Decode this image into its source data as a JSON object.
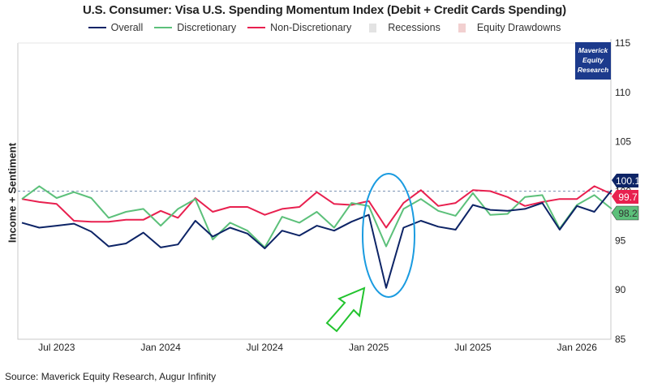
{
  "chart_data": {
    "type": "line",
    "title": "U.S. Consumer: Visa U.S. Spending Momentum Index (Debit + Credit Cards Spending)",
    "ylabel": "Income + Sentiment",
    "xlabel": "",
    "ylim": [
      85,
      115
    ],
    "yticks": [
      "85",
      "90",
      "95",
      "100",
      "105",
      "110",
      "115"
    ],
    "reference_line": 100,
    "x": [
      "May 2023",
      "Jun 2023",
      "Jul 2023",
      "Aug 2023",
      "Sep 2023",
      "Oct 2023",
      "Nov 2023",
      "Dec 2023",
      "Jan 2024",
      "Feb 2024",
      "Mar 2024",
      "Apr 2024",
      "May 2024",
      "Jun 2024",
      "Jul 2024",
      "Aug 2024",
      "Sep 2024",
      "Oct 2024",
      "Nov 2024",
      "Dec 2024",
      "Jan 2025",
      "Feb 2025",
      "Mar 2025",
      "Apr 2025",
      "May 2025",
      "Jun 2025",
      "Jul 2025",
      "Aug 2025",
      "Sep 2025",
      "Oct 2025",
      "Nov 2025",
      "Dec 2025",
      "Jan 2026",
      "Feb 2026",
      "Mar 2026"
    ],
    "xticks": [
      {
        "label": "Jul 2023",
        "index": 2
      },
      {
        "label": "Jan 2024",
        "index": 8
      },
      {
        "label": "Jul 2024",
        "index": 14
      },
      {
        "label": "Jan 2025",
        "index": 20
      },
      {
        "label": "Jul 2025",
        "index": 26
      },
      {
        "label": "Jan 2026",
        "index": 32
      }
    ],
    "series": [
      {
        "name": "Overall",
        "color": "#0d2466",
        "last_label": "100.1",
        "values": [
          96.8,
          96.3,
          96.5,
          96.7,
          95.9,
          94.4,
          94.7,
          95.8,
          94.3,
          94.6,
          97.0,
          95.4,
          96.3,
          95.7,
          94.2,
          96.0,
          95.5,
          96.5,
          96.0,
          96.9,
          97.6,
          90.2,
          96.3,
          97.0,
          96.4,
          96.1,
          98.6,
          98.1,
          98.0,
          98.2,
          98.8,
          96.1,
          98.5,
          97.9,
          100.1
        ]
      },
      {
        "name": "Discretionary",
        "color": "#5cc07a",
        "last_label": "98.2",
        "values": [
          99.2,
          100.5,
          99.3,
          99.9,
          99.3,
          97.3,
          97.9,
          98.2,
          96.5,
          98.2,
          99.2,
          95.1,
          96.8,
          96.0,
          94.3,
          97.4,
          96.8,
          97.9,
          96.3,
          98.8,
          98.5,
          94.4,
          98.2,
          99.2,
          98.0,
          97.5,
          99.8,
          97.6,
          97.7,
          99.4,
          99.6,
          96.2,
          98.6,
          99.6,
          98.2
        ]
      },
      {
        "name": "Non-Discretionary",
        "color": "#e8204f",
        "last_label": "99.7",
        "values": [
          99.2,
          98.9,
          98.7,
          97.0,
          96.9,
          96.9,
          97.1,
          97.1,
          98.0,
          97.3,
          99.3,
          97.9,
          98.4,
          98.4,
          97.6,
          98.2,
          98.4,
          99.9,
          98.7,
          98.6,
          99.0,
          96.3,
          98.8,
          100.1,
          98.5,
          98.8,
          100.1,
          100.0,
          99.4,
          98.5,
          98.9,
          99.2,
          99.2,
          100.5,
          99.7
        ]
      }
    ],
    "legend": [
      {
        "label": "Overall",
        "color": "#0d2466",
        "kind": "line"
      },
      {
        "label": "Discretionary",
        "color": "#5cc07a",
        "kind": "line"
      },
      {
        "label": "Non-Discretionary",
        "color": "#e8204f",
        "kind": "line"
      },
      {
        "label": "Recessions",
        "color": "#e3e3e3",
        "kind": "box"
      },
      {
        "label": "Equity Drawdowns",
        "color": "#f2d0d0",
        "kind": "box"
      }
    ],
    "legend_position": "top-center",
    "grid": false,
    "annotations": {
      "highlight": "Feb 2025 dip circled, with arrow pointing to it"
    }
  },
  "watermark": "Maverick Equity Research",
  "source": "Source: Maverick Equity Research, Augur Infinity"
}
